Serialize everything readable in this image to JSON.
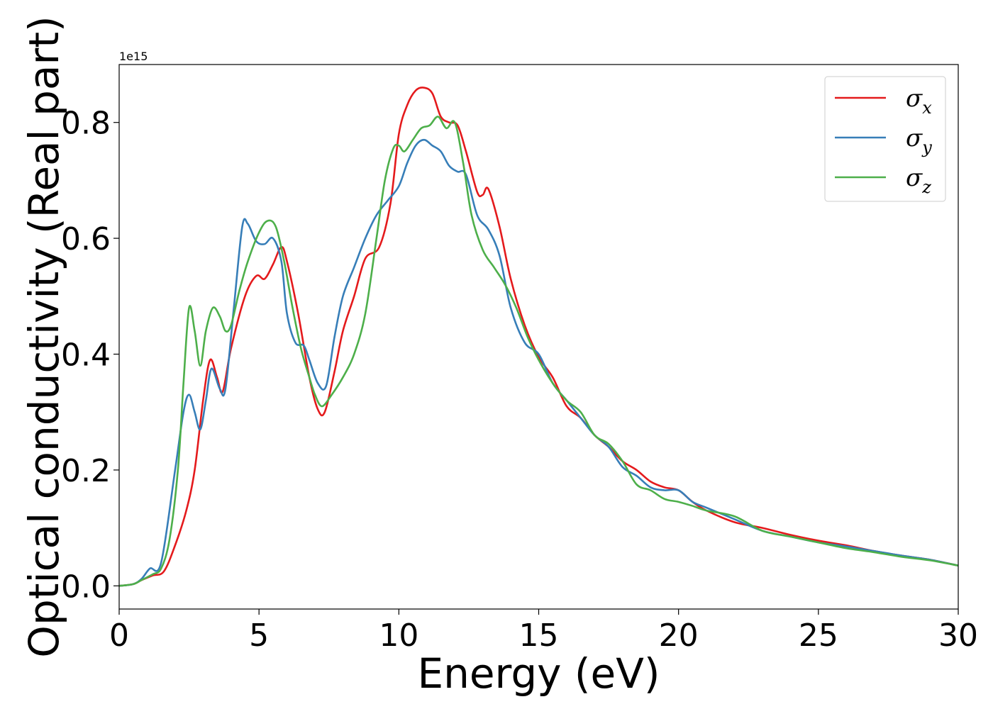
{
  "chart_data": {
    "type": "line",
    "title": "",
    "xlabel": "Energy (eV)",
    "ylabel": "Optical conductivity (Real part)",
    "y_offset_label": "1e15",
    "xlim": [
      0,
      30
    ],
    "ylim": [
      -0.04,
      0.9
    ],
    "x_ticks": [
      0,
      5,
      10,
      15,
      20,
      25,
      30
    ],
    "x_tick_labels": [
      "0",
      "5",
      "10",
      "15",
      "20",
      "25",
      "30"
    ],
    "y_ticks": [
      0.0,
      0.2,
      0.4,
      0.6,
      0.8
    ],
    "y_tick_labels": [
      "0.0",
      "0.2",
      "0.4",
      "0.6",
      "0.8"
    ],
    "grid": false,
    "legend_position": "top-right",
    "series": [
      {
        "name": "σx",
        "legend_symbol": "σ",
        "legend_subscript": "x",
        "color": "#e41a1c",
        "x": [
          0,
          0.5,
          0.8,
          1.2,
          1.6,
          2.0,
          2.4,
          2.7,
          3.0,
          3.25,
          3.5,
          3.7,
          4.0,
          4.5,
          4.9,
          5.2,
          5.5,
          5.8,
          6.0,
          6.4,
          6.8,
          7.1,
          7.35,
          7.7,
          8.0,
          8.4,
          8.8,
          9.3,
          9.7,
          10.0,
          10.3,
          10.6,
          10.9,
          11.2,
          11.5,
          11.8,
          12.1,
          12.4,
          12.8,
          13.0,
          13.2,
          13.6,
          14.0,
          14.5,
          15.0,
          15.5,
          16.0,
          16.5,
          17.0,
          17.5,
          18.0,
          18.5,
          19.0,
          19.5,
          20.0,
          20.5,
          21.0,
          22.0,
          23.0,
          24.0,
          25.0,
          26.0,
          27.0,
          28.0,
          29.0,
          30.0
        ],
        "y": [
          0.0,
          0.003,
          0.01,
          0.018,
          0.025,
          0.07,
          0.13,
          0.2,
          0.32,
          0.39,
          0.36,
          0.335,
          0.41,
          0.5,
          0.535,
          0.53,
          0.555,
          0.585,
          0.56,
          0.47,
          0.36,
          0.305,
          0.3,
          0.37,
          0.44,
          0.5,
          0.565,
          0.585,
          0.66,
          0.78,
          0.83,
          0.855,
          0.86,
          0.85,
          0.81,
          0.8,
          0.795,
          0.75,
          0.68,
          0.675,
          0.685,
          0.62,
          0.53,
          0.45,
          0.395,
          0.36,
          0.31,
          0.29,
          0.26,
          0.24,
          0.215,
          0.2,
          0.18,
          0.17,
          0.165,
          0.145,
          0.13,
          0.11,
          0.1,
          0.088,
          0.078,
          0.07,
          0.06,
          0.052,
          0.045,
          0.035
        ]
      },
      {
        "name": "σy",
        "legend_symbol": "σ",
        "legend_subscript": "y",
        "color": "#377eb8",
        "x": [
          0,
          0.5,
          0.8,
          1.1,
          1.5,
          2.0,
          2.3,
          2.5,
          2.7,
          2.9,
          3.1,
          3.3,
          3.6,
          3.8,
          4.1,
          4.4,
          4.6,
          4.9,
          5.2,
          5.5,
          5.8,
          6.0,
          6.3,
          6.6,
          6.8,
          7.1,
          7.4,
          7.7,
          8.0,
          8.4,
          8.8,
          9.2,
          9.6,
          10.0,
          10.3,
          10.6,
          10.9,
          11.2,
          11.5,
          11.8,
          12.1,
          12.4,
          12.8,
          13.2,
          13.6,
          14.0,
          14.5,
          15.0,
          15.5,
          16.0,
          16.5,
          17.0,
          17.5,
          18.0,
          18.5,
          19.0,
          19.5,
          20.0,
          20.5,
          21.0,
          22.0,
          23.0,
          24.0,
          25.0,
          26.0,
          27.0,
          28.0,
          29.0,
          30.0
        ],
        "y": [
          0.0,
          0.003,
          0.012,
          0.03,
          0.04,
          0.2,
          0.3,
          0.33,
          0.3,
          0.27,
          0.32,
          0.375,
          0.34,
          0.34,
          0.48,
          0.62,
          0.625,
          0.595,
          0.59,
          0.6,
          0.56,
          0.47,
          0.42,
          0.415,
          0.39,
          0.35,
          0.345,
          0.43,
          0.5,
          0.55,
          0.6,
          0.64,
          0.665,
          0.69,
          0.73,
          0.76,
          0.77,
          0.76,
          0.75,
          0.725,
          0.715,
          0.71,
          0.64,
          0.615,
          0.57,
          0.48,
          0.42,
          0.4,
          0.35,
          0.32,
          0.29,
          0.26,
          0.24,
          0.205,
          0.19,
          0.17,
          0.165,
          0.165,
          0.145,
          0.135,
          0.115,
          0.095,
          0.085,
          0.075,
          0.068,
          0.06,
          0.052,
          0.045,
          0.035
        ]
      },
      {
        "name": "σz",
        "legend_symbol": "σ",
        "legend_subscript": "z",
        "color": "#4daf4a",
        "x": [
          0,
          0.5,
          0.8,
          1.2,
          1.5,
          1.8,
          2.1,
          2.3,
          2.5,
          2.7,
          2.9,
          3.1,
          3.35,
          3.6,
          3.8,
          4.0,
          4.3,
          4.6,
          5.0,
          5.3,
          5.6,
          5.9,
          6.2,
          6.5,
          6.8,
          7.0,
          7.25,
          7.6,
          8.0,
          8.4,
          8.8,
          9.2,
          9.5,
          9.8,
          10.0,
          10.2,
          10.5,
          10.8,
          11.1,
          11.4,
          11.7,
          12.0,
          12.3,
          12.6,
          13.0,
          13.4,
          13.8,
          14.2,
          14.6,
          15.0,
          15.5,
          16.0,
          16.5,
          17.0,
          17.5,
          18.0,
          18.5,
          19.0,
          19.5,
          20.0,
          20.5,
          21.0,
          22.0,
          23.0,
          24.0,
          25.0,
          26.0,
          27.0,
          28.0,
          29.0,
          30.0
        ],
        "y": [
          0.0,
          0.003,
          0.01,
          0.02,
          0.03,
          0.08,
          0.2,
          0.35,
          0.48,
          0.44,
          0.38,
          0.44,
          0.48,
          0.465,
          0.44,
          0.45,
          0.51,
          0.56,
          0.61,
          0.63,
          0.62,
          0.56,
          0.48,
          0.41,
          0.36,
          0.33,
          0.31,
          0.33,
          0.36,
          0.4,
          0.47,
          0.6,
          0.7,
          0.755,
          0.76,
          0.75,
          0.77,
          0.79,
          0.795,
          0.81,
          0.79,
          0.8,
          0.73,
          0.64,
          0.58,
          0.55,
          0.52,
          0.48,
          0.43,
          0.39,
          0.35,
          0.32,
          0.3,
          0.26,
          0.245,
          0.215,
          0.175,
          0.165,
          0.15,
          0.145,
          0.138,
          0.13,
          0.12,
          0.095,
          0.085,
          0.075,
          0.065,
          0.058,
          0.05,
          0.044,
          0.035
        ]
      }
    ]
  }
}
